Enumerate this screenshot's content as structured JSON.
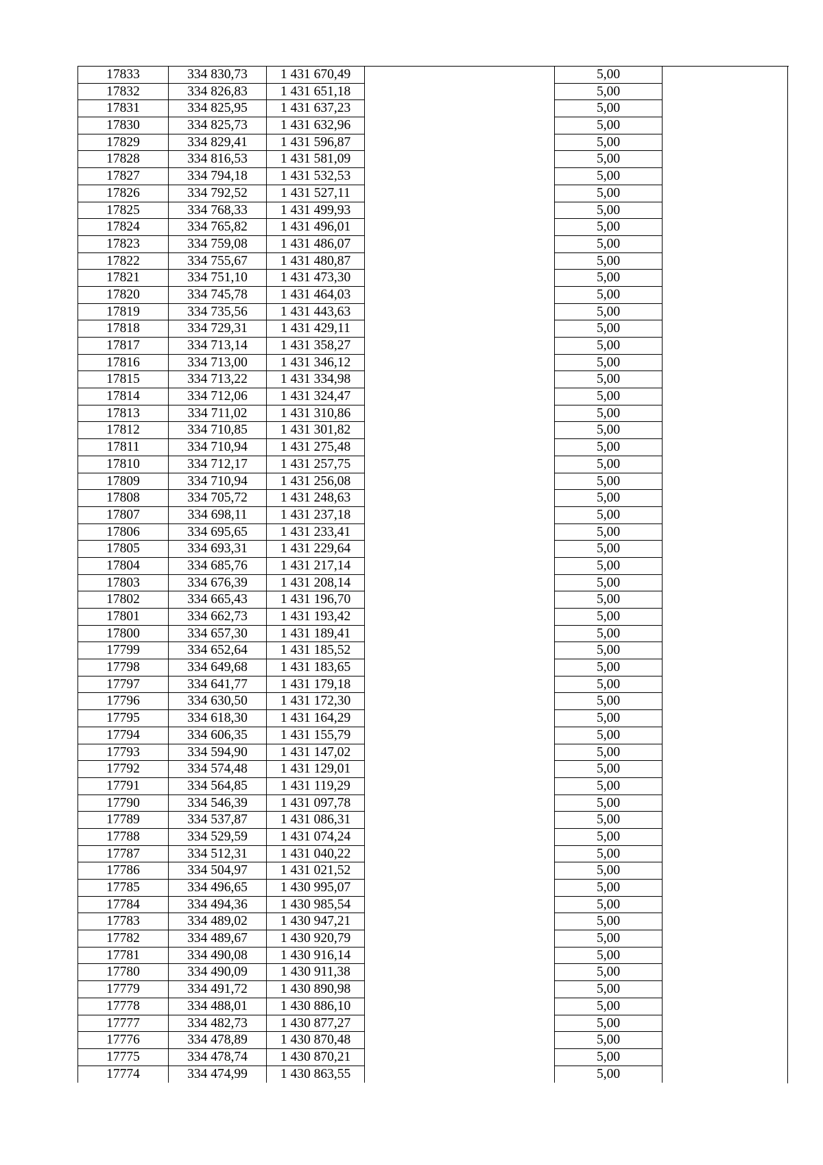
{
  "table": {
    "rows": [
      [
        "17833",
        "334 830,73",
        "1 431 670,49",
        "5,00"
      ],
      [
        "17832",
        "334 826,83",
        "1 431 651,18",
        "5,00"
      ],
      [
        "17831",
        "334 825,95",
        "1 431 637,23",
        "5,00"
      ],
      [
        "17830",
        "334 825,73",
        "1 431 632,96",
        "5,00"
      ],
      [
        "17829",
        "334 829,41",
        "1 431 596,87",
        "5,00"
      ],
      [
        "17828",
        "334 816,53",
        "1 431 581,09",
        "5,00"
      ],
      [
        "17827",
        "334 794,18",
        "1 431 532,53",
        "5,00"
      ],
      [
        "17826",
        "334 792,52",
        "1 431 527,11",
        "5,00"
      ],
      [
        "17825",
        "334 768,33",
        "1 431 499,93",
        "5,00"
      ],
      [
        "17824",
        "334 765,82",
        "1 431 496,01",
        "5,00"
      ],
      [
        "17823",
        "334 759,08",
        "1 431 486,07",
        "5,00"
      ],
      [
        "17822",
        "334 755,67",
        "1 431 480,87",
        "5,00"
      ],
      [
        "17821",
        "334 751,10",
        "1 431 473,30",
        "5,00"
      ],
      [
        "17820",
        "334 745,78",
        "1 431 464,03",
        "5,00"
      ],
      [
        "17819",
        "334 735,56",
        "1 431 443,63",
        "5,00"
      ],
      [
        "17818",
        "334 729,31",
        "1 431 429,11",
        "5,00"
      ],
      [
        "17817",
        "334 713,14",
        "1 431 358,27",
        "5,00"
      ],
      [
        "17816",
        "334 713,00",
        "1 431 346,12",
        "5,00"
      ],
      [
        "17815",
        "334 713,22",
        "1 431 334,98",
        "5,00"
      ],
      [
        "17814",
        "334 712,06",
        "1 431 324,47",
        "5,00"
      ],
      [
        "17813",
        "334 711,02",
        "1 431 310,86",
        "5,00"
      ],
      [
        "17812",
        "334 710,85",
        "1 431 301,82",
        "5,00"
      ],
      [
        "17811",
        "334 710,94",
        "1 431 275,48",
        "5,00"
      ],
      [
        "17810",
        "334 712,17",
        "1 431 257,75",
        "5,00"
      ],
      [
        "17809",
        "334 710,94",
        "1 431 256,08",
        "5,00"
      ],
      [
        "17808",
        "334 705,72",
        "1 431 248,63",
        "5,00"
      ],
      [
        "17807",
        "334 698,11",
        "1 431 237,18",
        "5,00"
      ],
      [
        "17806",
        "334 695,65",
        "1 431 233,41",
        "5,00"
      ],
      [
        "17805",
        "334 693,31",
        "1 431 229,64",
        "5,00"
      ],
      [
        "17804",
        "334 685,76",
        "1 431 217,14",
        "5,00"
      ],
      [
        "17803",
        "334 676,39",
        "1 431 208,14",
        "5,00"
      ],
      [
        "17802",
        "334 665,43",
        "1 431 196,70",
        "5,00"
      ],
      [
        "17801",
        "334 662,73",
        "1 431 193,42",
        "5,00"
      ],
      [
        "17800",
        "334 657,30",
        "1 431 189,41",
        "5,00"
      ],
      [
        "17799",
        "334 652,64",
        "1 431 185,52",
        "5,00"
      ],
      [
        "17798",
        "334 649,68",
        "1 431 183,65",
        "5,00"
      ],
      [
        "17797",
        "334 641,77",
        "1 431 179,18",
        "5,00"
      ],
      [
        "17796",
        "334 630,50",
        "1 431 172,30",
        "5,00"
      ],
      [
        "17795",
        "334 618,30",
        "1 431 164,29",
        "5,00"
      ],
      [
        "17794",
        "334 606,35",
        "1 431 155,79",
        "5,00"
      ],
      [
        "17793",
        "334 594,90",
        "1 431 147,02",
        "5,00"
      ],
      [
        "17792",
        "334 574,48",
        "1 431 129,01",
        "5,00"
      ],
      [
        "17791",
        "334 564,85",
        "1 431 119,29",
        "5,00"
      ],
      [
        "17790",
        "334 546,39",
        "1 431 097,78",
        "5,00"
      ],
      [
        "17789",
        "334 537,87",
        "1 431 086,31",
        "5,00"
      ],
      [
        "17788",
        "334 529,59",
        "1 431 074,24",
        "5,00"
      ],
      [
        "17787",
        "334 512,31",
        "1 431 040,22",
        "5,00"
      ],
      [
        "17786",
        "334 504,97",
        "1 431 021,52",
        "5,00"
      ],
      [
        "17785",
        "334 496,65",
        "1 430 995,07",
        "5,00"
      ],
      [
        "17784",
        "334 494,36",
        "1 430 985,54",
        "5,00"
      ],
      [
        "17783",
        "334 489,02",
        "1 430 947,21",
        "5,00"
      ],
      [
        "17782",
        "334 489,67",
        "1 430 920,79",
        "5,00"
      ],
      [
        "17781",
        "334 490,08",
        "1 430 916,14",
        "5,00"
      ],
      [
        "17780",
        "334 490,09",
        "1 430 911,38",
        "5,00"
      ],
      [
        "17779",
        "334 491,72",
        "1 430 890,98",
        "5,00"
      ],
      [
        "17778",
        "334 488,01",
        "1 430 886,10",
        "5,00"
      ],
      [
        "17777",
        "334 482,73",
        "1 430 877,27",
        "5,00"
      ],
      [
        "17776",
        "334 478,89",
        "1 430 870,48",
        "5,00"
      ],
      [
        "17775",
        "334 478,74",
        "1 430 870,21",
        "5,00"
      ],
      [
        "17774",
        "334 474,99",
        "1 430 863,55",
        "5,00"
      ]
    ]
  }
}
